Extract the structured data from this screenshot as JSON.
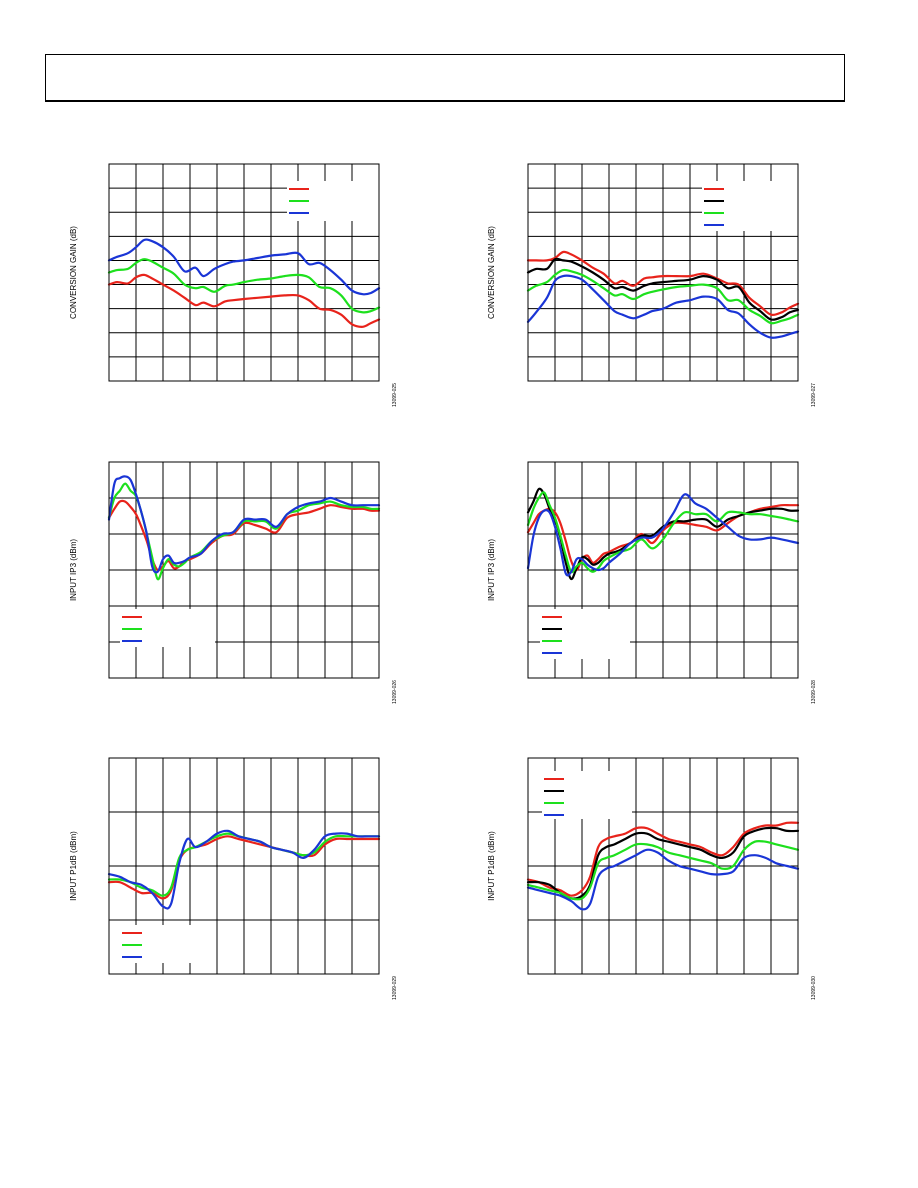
{
  "colors": {
    "red": "#e8231b",
    "black": "#000000",
    "green": "#1de01d",
    "blue": "#1a35d6"
  },
  "header": {
    "text": ""
  },
  "chart_data": [
    {
      "id": "fig-025",
      "type": "line",
      "ylabel": "CONVERSION GAIN (dB)",
      "figure_id": "13099-025",
      "grid": true,
      "legend": "top-right",
      "x": [
        0,
        0.3,
        0.7,
        1.0,
        1.3,
        1.6,
        2.0,
        2.4,
        2.8,
        3.2,
        3.5,
        3.9,
        4.3,
        4.6,
        5.0,
        5.5,
        6.0,
        6.5,
        7.0,
        7.4,
        7.8,
        8.2,
        8.6,
        9.0,
        9.4,
        9.7,
        10.0
      ],
      "series": [
        {
          "color": "red",
          "y": [
            4.0,
            4.1,
            4.05,
            4.3,
            4.4,
            4.25,
            4.0,
            3.75,
            3.45,
            3.15,
            3.25,
            3.1,
            3.3,
            3.35,
            3.4,
            3.45,
            3.5,
            3.55,
            3.55,
            3.35,
            3.0,
            2.95,
            2.75,
            2.35,
            2.25,
            2.4,
            2.55
          ]
        },
        {
          "color": "green",
          "y": [
            4.5,
            4.6,
            4.65,
            4.9,
            5.05,
            4.95,
            4.7,
            4.45,
            4.0,
            3.85,
            3.9,
            3.7,
            3.95,
            4.0,
            4.1,
            4.2,
            4.25,
            4.35,
            4.4,
            4.3,
            3.9,
            3.85,
            3.55,
            3.0,
            2.85,
            2.9,
            3.05
          ]
        },
        {
          "color": "blue",
          "y": [
            5.0,
            5.15,
            5.3,
            5.55,
            5.85,
            5.8,
            5.55,
            5.15,
            4.55,
            4.7,
            4.35,
            4.65,
            4.85,
            4.95,
            5.0,
            5.1,
            5.2,
            5.25,
            5.3,
            4.85,
            4.9,
            4.6,
            4.2,
            3.75,
            3.6,
            3.65,
            3.85
          ]
        }
      ]
    },
    {
      "id": "fig-027",
      "type": "line",
      "ylabel": "CONVERSION GAIN (dB)",
      "figure_id": "13099-027",
      "grid": true,
      "legend": "top-right",
      "x": [
        0,
        0.3,
        0.7,
        1.0,
        1.3,
        1.6,
        2.0,
        2.4,
        2.8,
        3.2,
        3.5,
        3.9,
        4.3,
        4.6,
        5.0,
        5.5,
        6.0,
        6.5,
        7.0,
        7.4,
        7.8,
        8.2,
        8.6,
        9.0,
        9.4,
        9.7,
        10.0
      ],
      "series": [
        {
          "color": "red",
          "y": [
            5.0,
            5.0,
            5.0,
            5.1,
            5.35,
            5.25,
            5.0,
            4.7,
            4.45,
            4.05,
            4.15,
            3.95,
            4.25,
            4.3,
            4.35,
            4.35,
            4.35,
            4.45,
            4.25,
            4.05,
            4.0,
            3.45,
            3.1,
            2.75,
            2.85,
            3.05,
            3.2
          ]
        },
        {
          "color": "black",
          "y": [
            4.5,
            4.65,
            4.65,
            5.05,
            5.0,
            4.95,
            4.75,
            4.5,
            4.2,
            3.85,
            3.9,
            3.75,
            3.95,
            4.05,
            4.1,
            4.15,
            4.2,
            4.35,
            4.2,
            3.85,
            3.9,
            3.25,
            2.9,
            2.55,
            2.65,
            2.85,
            2.95
          ]
        },
        {
          "color": "green",
          "y": [
            3.75,
            3.95,
            4.1,
            4.4,
            4.6,
            4.55,
            4.4,
            4.15,
            3.85,
            3.55,
            3.6,
            3.4,
            3.6,
            3.7,
            3.8,
            3.9,
            3.95,
            4.0,
            3.85,
            3.35,
            3.35,
            2.95,
            2.7,
            2.4,
            2.5,
            2.6,
            2.75
          ]
        },
        {
          "color": "blue",
          "y": [
            2.45,
            2.85,
            3.45,
            4.15,
            4.35,
            4.35,
            4.2,
            3.8,
            3.35,
            2.9,
            2.75,
            2.6,
            2.75,
            2.9,
            3.0,
            3.25,
            3.35,
            3.5,
            3.4,
            2.95,
            2.8,
            2.35,
            2.0,
            1.8,
            1.85,
            1.95,
            2.05
          ]
        }
      ]
    },
    {
      "id": "fig-026",
      "type": "line",
      "ylabel": "INPUT IP3 (dBm)",
      "figure_id": "13099-026",
      "grid": true,
      "legend": "bottom-left",
      "x": [
        0,
        0.2,
        0.4,
        0.6,
        0.8,
        1.0,
        1.2,
        1.4,
        1.6,
        1.8,
        2.0,
        2.2,
        2.4,
        2.6,
        2.8,
        3.0,
        3.4,
        3.8,
        4.2,
        4.6,
        5.0,
        5.4,
        5.8,
        6.2,
        6.6,
        7.0,
        7.4,
        7.8,
        8.2,
        8.6,
        9.0,
        9.4,
        9.7,
        10.0
      ],
      "series": [
        {
          "color": "red",
          "y": [
            4.45,
            4.7,
            4.9,
            4.9,
            4.75,
            4.55,
            4.2,
            3.8,
            3.3,
            3.0,
            3.1,
            3.25,
            3.05,
            3.1,
            3.25,
            3.3,
            3.45,
            3.75,
            3.95,
            4.0,
            4.3,
            4.25,
            4.15,
            4.05,
            4.45,
            4.55,
            4.6,
            4.7,
            4.8,
            4.75,
            4.7,
            4.7,
            4.65,
            4.65
          ]
        },
        {
          "color": "green",
          "y": [
            4.45,
            5.0,
            5.2,
            5.4,
            5.2,
            5.05,
            4.6,
            4.0,
            3.35,
            2.75,
            3.05,
            3.3,
            3.15,
            3.1,
            3.2,
            3.35,
            3.5,
            3.8,
            3.95,
            4.05,
            4.35,
            4.35,
            4.35,
            4.15,
            4.55,
            4.65,
            4.8,
            4.85,
            4.9,
            4.8,
            4.75,
            4.75,
            4.7,
            4.7
          ]
        },
        {
          "color": "blue",
          "y": [
            4.4,
            5.4,
            5.55,
            5.6,
            5.5,
            5.1,
            4.6,
            4.0,
            3.1,
            2.95,
            3.3,
            3.4,
            3.2,
            3.2,
            3.25,
            3.35,
            3.45,
            3.8,
            4.0,
            4.05,
            4.4,
            4.4,
            4.4,
            4.2,
            4.55,
            4.75,
            4.85,
            4.9,
            5.0,
            4.9,
            4.8,
            4.8,
            4.8,
            4.8
          ]
        }
      ]
    },
    {
      "id": "fig-028",
      "type": "line",
      "ylabel": "INPUT IP3 (dBm)",
      "figure_id": "13099-028",
      "grid": true,
      "legend": "bottom-left",
      "x": [
        0,
        0.2,
        0.4,
        0.6,
        0.8,
        1.0,
        1.2,
        1.4,
        1.6,
        1.8,
        2.0,
        2.2,
        2.4,
        2.6,
        2.8,
        3.0,
        3.4,
        3.8,
        4.2,
        4.6,
        5.0,
        5.4,
        5.8,
        6.2,
        6.6,
        7.0,
        7.4,
        7.8,
        8.2,
        8.6,
        9.0,
        9.4,
        9.7,
        10.0
      ],
      "series": [
        {
          "color": "red",
          "y": [
            4.05,
            4.3,
            4.55,
            4.65,
            4.7,
            4.6,
            4.3,
            3.8,
            3.25,
            3.0,
            3.3,
            3.4,
            3.2,
            3.3,
            3.45,
            3.5,
            3.65,
            3.75,
            4.0,
            3.75,
            4.1,
            4.3,
            4.3,
            4.25,
            4.2,
            4.1,
            4.3,
            4.5,
            4.6,
            4.7,
            4.75,
            4.8,
            4.8,
            4.8
          ]
        },
        {
          "color": "black",
          "y": [
            4.6,
            4.9,
            5.25,
            5.1,
            4.7,
            4.4,
            3.9,
            3.2,
            2.75,
            3.05,
            3.35,
            3.3,
            3.15,
            3.2,
            3.35,
            3.45,
            3.55,
            3.75,
            3.95,
            3.95,
            4.2,
            4.35,
            4.35,
            4.4,
            4.4,
            4.2,
            4.4,
            4.5,
            4.6,
            4.65,
            4.7,
            4.7,
            4.65,
            4.65
          ]
        },
        {
          "color": "green",
          "y": [
            4.25,
            4.7,
            5.0,
            5.15,
            4.8,
            4.45,
            3.95,
            3.4,
            2.95,
            3.1,
            3.2,
            3.05,
            2.95,
            3.05,
            3.25,
            3.35,
            3.5,
            3.6,
            3.85,
            3.6,
            3.85,
            4.3,
            4.6,
            4.55,
            4.55,
            4.35,
            4.6,
            4.6,
            4.55,
            4.55,
            4.5,
            4.45,
            4.4,
            4.35
          ]
        },
        {
          "color": "blue",
          "y": [
            3.05,
            3.95,
            4.45,
            4.65,
            4.6,
            4.2,
            3.6,
            2.9,
            2.95,
            3.3,
            3.3,
            3.15,
            3.05,
            3.0,
            3.05,
            3.2,
            3.45,
            3.75,
            3.9,
            3.9,
            4.15,
            4.6,
            5.1,
            4.85,
            4.7,
            4.45,
            4.2,
            3.95,
            3.85,
            3.85,
            3.9,
            3.85,
            3.8,
            3.75
          ]
        }
      ]
    },
    {
      "id": "fig-029",
      "type": "line",
      "ylabel": "INPUT P1dB (dBm)",
      "figure_id": "13099-029",
      "grid": true,
      "legend": "bottom-left",
      "x": [
        0,
        0.4,
        0.8,
        1.2,
        1.6,
        2.0,
        2.3,
        2.6,
        2.9,
        3.2,
        3.6,
        4.0,
        4.4,
        4.8,
        5.2,
        5.6,
        6.0,
        6.4,
        6.8,
        7.2,
        7.6,
        8.0,
        8.4,
        8.8,
        9.2,
        9.6,
        10.0
      ],
      "series": [
        {
          "color": "red",
          "y": [
            1.7,
            1.7,
            1.6,
            1.5,
            1.5,
            1.4,
            1.55,
            2.1,
            2.3,
            2.35,
            2.4,
            2.5,
            2.55,
            2.5,
            2.45,
            2.4,
            2.35,
            2.3,
            2.25,
            2.2,
            2.2,
            2.4,
            2.5,
            2.5,
            2.5,
            2.5,
            2.5
          ]
        },
        {
          "color": "green",
          "y": [
            1.75,
            1.75,
            1.7,
            1.6,
            1.55,
            1.45,
            1.6,
            2.15,
            2.3,
            2.35,
            2.45,
            2.55,
            2.6,
            2.55,
            2.5,
            2.45,
            2.35,
            2.3,
            2.25,
            2.2,
            2.25,
            2.45,
            2.55,
            2.55,
            2.55,
            2.55,
            2.55
          ]
        },
        {
          "color": "blue",
          "y": [
            1.85,
            1.8,
            1.7,
            1.65,
            1.5,
            1.25,
            1.3,
            2.05,
            2.5,
            2.35,
            2.45,
            2.6,
            2.65,
            2.55,
            2.5,
            2.45,
            2.35,
            2.3,
            2.25,
            2.15,
            2.3,
            2.55,
            2.6,
            2.6,
            2.55,
            2.55,
            2.55
          ]
        }
      ]
    },
    {
      "id": "fig-030",
      "type": "line",
      "ylabel": "INPUT P1dB (dBm)",
      "figure_id": "13099-030",
      "grid": true,
      "legend": "top-left",
      "x": [
        0,
        0.4,
        0.8,
        1.2,
        1.6,
        2.0,
        2.3,
        2.6,
        2.9,
        3.2,
        3.6,
        4.0,
        4.4,
        4.8,
        5.2,
        5.6,
        6.0,
        6.4,
        6.8,
        7.2,
        7.6,
        8.0,
        8.4,
        8.8,
        9.2,
        9.6,
        10.0
      ],
      "series": [
        {
          "color": "red",
          "y": [
            1.75,
            1.7,
            1.6,
            1.55,
            1.45,
            1.55,
            1.8,
            2.35,
            2.5,
            2.55,
            2.6,
            2.7,
            2.7,
            2.6,
            2.5,
            2.45,
            2.4,
            2.35,
            2.25,
            2.2,
            2.35,
            2.6,
            2.7,
            2.75,
            2.75,
            2.8,
            2.8
          ]
        },
        {
          "color": "black",
          "y": [
            1.7,
            1.7,
            1.65,
            1.5,
            1.4,
            1.45,
            1.65,
            2.2,
            2.35,
            2.4,
            2.5,
            2.6,
            2.6,
            2.5,
            2.45,
            2.4,
            2.35,
            2.3,
            2.2,
            2.15,
            2.25,
            2.55,
            2.65,
            2.7,
            2.7,
            2.65,
            2.65
          ]
        },
        {
          "color": "green",
          "y": [
            1.65,
            1.6,
            1.55,
            1.5,
            1.4,
            1.4,
            1.6,
            2.05,
            2.15,
            2.2,
            2.3,
            2.4,
            2.4,
            2.35,
            2.25,
            2.2,
            2.15,
            2.1,
            2.05,
            1.95,
            2.0,
            2.3,
            2.45,
            2.45,
            2.4,
            2.35,
            2.3
          ]
        },
        {
          "color": "blue",
          "y": [
            1.6,
            1.55,
            1.5,
            1.45,
            1.35,
            1.2,
            1.3,
            1.8,
            1.95,
            2.0,
            2.1,
            2.2,
            2.3,
            2.25,
            2.1,
            2.0,
            1.95,
            1.9,
            1.85,
            1.85,
            1.9,
            2.15,
            2.2,
            2.15,
            2.05,
            2.0,
            1.95
          ]
        }
      ]
    }
  ]
}
